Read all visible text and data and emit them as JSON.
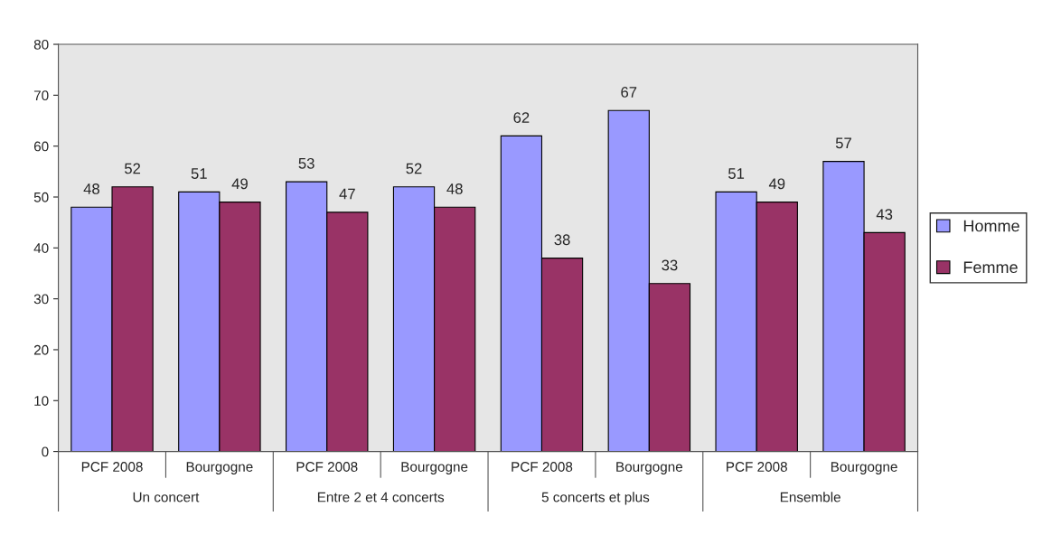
{
  "chart_data": {
    "type": "bar",
    "categories": [
      "PCF 2008",
      "Bourgogne",
      "PCF 2008",
      "Bourgogne",
      "PCF 2008",
      "Bourgogne",
      "PCF 2008",
      "Bourgogne"
    ],
    "series": [
      {
        "name": "Homme",
        "color": "#9999ff",
        "values": [
          48,
          51,
          53,
          52,
          62,
          67,
          51,
          57
        ]
      },
      {
        "name": "Femme",
        "color": "#993366",
        "values": [
          52,
          49,
          47,
          48,
          38,
          33,
          49,
          43
        ]
      }
    ],
    "annotations": [
      "Un concert",
      "Entre 2 et 4 concerts",
      "5 concerts et plus",
      "Ensemble"
    ],
    "ylim": [
      0,
      80
    ],
    "yticks": [
      0,
      10,
      20,
      30,
      40,
      50,
      60,
      70,
      80
    ],
    "data_labels": true,
    "grid": false,
    "legend": "right"
  }
}
